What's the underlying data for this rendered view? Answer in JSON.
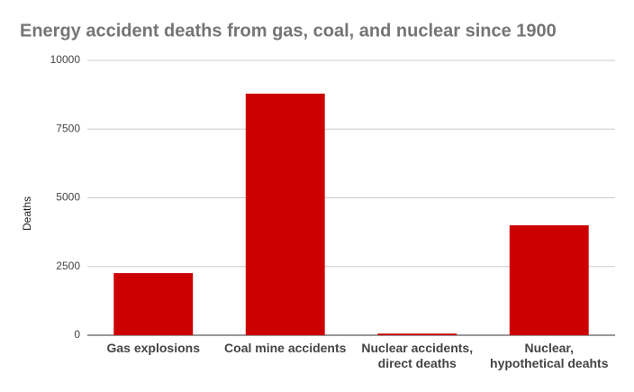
{
  "chart_data": {
    "type": "bar",
    "title": "Energy accident deaths from gas, coal, and nuclear since 1900",
    "y_label": "Deaths",
    "categories": [
      "Gas explosions",
      "Coal mine accidents",
      "Nuclear accidents, direct deaths",
      "Nuclear, hypothetical deahts"
    ],
    "values": [
      2260,
      8790,
      60,
      4000
    ],
    "color": "#cc0000",
    "ylim": [
      0,
      10000
    ],
    "yticks": [
      0,
      2500,
      5000,
      7500,
      10000
    ],
    "grid": true
  }
}
